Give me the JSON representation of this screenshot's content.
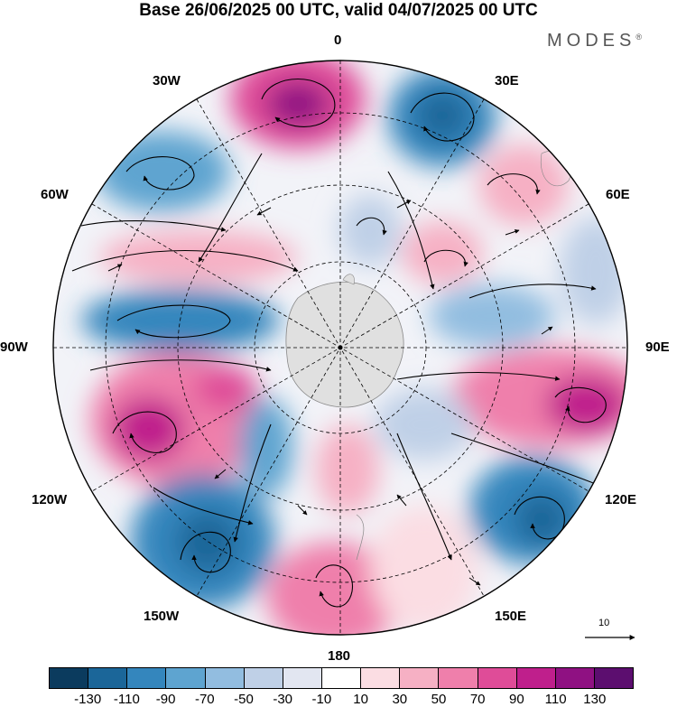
{
  "title": "Base 26/06/2025 00 UTC, valid 04/07/2025 00 UTC",
  "brand": {
    "name": "MODES",
    "mark": "®"
  },
  "longitude_labels": {
    "lon_0": "0",
    "lon_30e": "30E",
    "lon_60e": "60E",
    "lon_90e": "90E",
    "lon_120e": "120E",
    "lon_150e": "150E",
    "lon_180": "180",
    "lon_150w": "150W",
    "lon_120w": "120W",
    "lon_90w": "90W",
    "lon_60w": "60W",
    "lon_30w": "30W"
  },
  "reference_vector": {
    "label": "10"
  },
  "colorbar": {
    "colors": [
      "#0b3b5e",
      "#1b6699",
      "#3486bd",
      "#5ea4d0",
      "#92bde0",
      "#bfd0e7",
      "#e2e6f1",
      "#ffffff",
      "#fbdde3",
      "#f6b0c4",
      "#ef7fab",
      "#df4c98",
      "#bf1f8c",
      "#8f1182",
      "#5c0e6f"
    ],
    "tick_labels": [
      "-130",
      "-110",
      "-90",
      "-70",
      "-50",
      "-30",
      "-10",
      "10",
      "30",
      "50",
      "70",
      "90",
      "110",
      "130"
    ]
  }
}
